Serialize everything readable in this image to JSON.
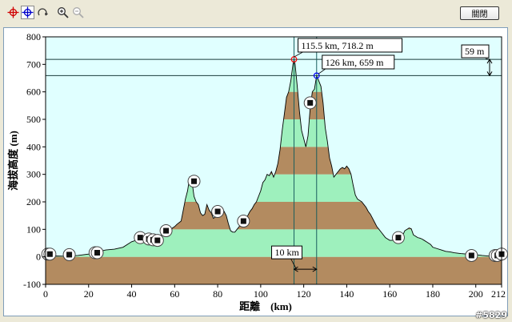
{
  "toolbar": {
    "icons": [
      "crosshair-red-icon",
      "crosshair-blue-icon",
      "rotate-icon",
      "zoom-in-icon",
      "zoom-out-icon"
    ],
    "close_label": "關閉"
  },
  "watermark": "#5829",
  "colors": {
    "plot_bg": "#e0ffff",
    "band_brown": "#b38b60",
    "band_green": "#9ef0bd",
    "profile_line": "#000000",
    "marker1": "#ff0000",
    "marker2": "#0000ff"
  },
  "chart_data": {
    "type": "area",
    "title": "",
    "xlabel": "距離　(km)",
    "ylabel": "海拔高度 (m)",
    "xlim": [
      0,
      212
    ],
    "ylim": [
      -100,
      800
    ],
    "xticks": [
      0,
      20,
      40,
      60,
      80,
      100,
      120,
      140,
      160,
      180,
      200,
      212
    ],
    "yticks": [
      -100,
      0,
      100,
      200,
      300,
      400,
      500,
      600,
      700,
      800
    ],
    "band_step": 100,
    "profile": {
      "x": [
        0,
        5,
        10,
        15,
        20,
        25,
        28,
        32,
        36,
        40,
        42,
        44,
        46,
        48,
        50,
        53,
        55,
        57,
        59,
        60,
        61,
        63,
        64,
        65,
        66,
        67,
        68,
        69,
        70,
        71,
        72,
        73,
        74,
        75,
        76,
        77,
        78,
        79,
        80,
        81,
        82,
        83,
        84,
        85,
        86,
        87,
        88,
        89,
        90,
        91,
        92,
        93,
        94,
        95,
        96,
        97,
        98,
        99,
        100,
        101,
        102,
        103,
        104,
        105,
        106,
        107,
        108,
        109,
        110,
        111,
        112,
        113,
        114,
        115,
        115.5,
        116,
        117,
        118,
        119,
        120,
        121,
        122,
        123,
        124,
        125,
        126,
        127,
        128,
        129,
        130,
        131,
        132,
        133,
        134,
        135,
        136,
        137,
        138,
        139,
        140,
        141,
        142,
        143,
        144,
        145,
        146,
        147,
        148,
        149,
        150,
        151,
        152,
        153,
        154,
        155,
        156,
        157,
        158,
        159,
        160,
        161,
        162,
        163,
        164,
        165,
        166,
        167,
        168,
        169,
        170,
        171,
        172,
        173,
        174,
        175,
        176,
        177,
        178,
        179,
        180,
        182,
        184,
        186,
        188,
        190,
        193,
        196,
        200,
        203,
        206,
        208,
        210,
        212
      ],
      "y": [
        2,
        3,
        2,
        5,
        10,
        20,
        25,
        28,
        35,
        55,
        60,
        63,
        60,
        62,
        58,
        72,
        92,
        90,
        105,
        110,
        118,
        130,
        170,
        210,
        240,
        290,
        278,
        220,
        200,
        190,
        160,
        150,
        155,
        190,
        170,
        160,
        140,
        145,
        160,
        155,
        150,
        165,
        150,
        120,
        95,
        90,
        90,
        100,
        110,
        120,
        125,
        140,
        150,
        165,
        175,
        190,
        200,
        220,
        240,
        270,
        280,
        300,
        295,
        310,
        290,
        310,
        340,
        390,
        460,
        520,
        580,
        600,
        640,
        700,
        718.2,
        700,
        620,
        530,
        460,
        430,
        400,
        440,
        540,
        600,
        610,
        659,
        640,
        620,
        560,
        470,
        420,
        360,
        330,
        290,
        300,
        310,
        320,
        325,
        320,
        330,
        320,
        300,
        260,
        225,
        210,
        205,
        200,
        190,
        180,
        165,
        155,
        140,
        125,
        110,
        100,
        90,
        80,
        70,
        65,
        60,
        60,
        62,
        65,
        68,
        72,
        78,
        95,
        100,
        105,
        102,
        80,
        75,
        70,
        68,
        65,
        60,
        55,
        50,
        45,
        35,
        30,
        25,
        20,
        18,
        15,
        12,
        10,
        8,
        5,
        3,
        2,
        2,
        2
      ]
    },
    "markers": [
      {
        "x": 115.5,
        "y": 718.2,
        "label": "115.5 km, 718.2 m",
        "color": "#ff0000"
      },
      {
        "x": 126,
        "y": 659,
        "label": "126 km, 659 m",
        "color": "#0000ff"
      }
    ],
    "difference_label": "59 m",
    "distance_label": "10 km",
    "waypoints": [
      {
        "x": 1,
        "y": 10
      },
      {
        "x": 2,
        "y": 10
      },
      {
        "x": 11,
        "y": 8
      },
      {
        "x": 23,
        "y": 15
      },
      {
        "x": 24,
        "y": 15
      },
      {
        "x": 44,
        "y": 70
      },
      {
        "x": 48,
        "y": 65
      },
      {
        "x": 50,
        "y": 62
      },
      {
        "x": 52,
        "y": 60
      },
      {
        "x": 56,
        "y": 95
      },
      {
        "x": 69,
        "y": 275
      },
      {
        "x": 80,
        "y": 165
      },
      {
        "x": 92,
        "y": 130
      },
      {
        "x": 123,
        "y": 560
      },
      {
        "x": 164,
        "y": 70
      },
      {
        "x": 198,
        "y": 5
      },
      {
        "x": 209,
        "y": 5
      },
      {
        "x": 210,
        "y": 5
      },
      {
        "x": 212,
        "y": 10
      }
    ]
  }
}
